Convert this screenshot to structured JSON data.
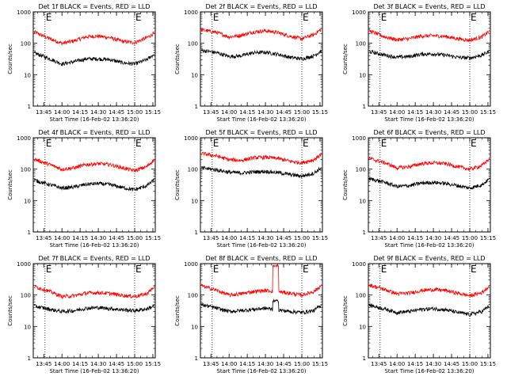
{
  "chart_data": [
    {
      "type": "line",
      "title": "Det 1f BLACK = Events, RED = LLD",
      "ylabel": "Counts/sec",
      "xlabel": "Start Time (16-Feb-02 13:36:20)",
      "x_ticks": [
        "13:45",
        "14:00",
        "14:15",
        "14:30",
        "14:45",
        "15:00",
        "15:15"
      ],
      "y_scale": "log",
      "ylim": [
        1,
        1000
      ],
      "y_ticks": [
        "1",
        "10",
        "100",
        "1000"
      ],
      "xlim": [
        "13:36:20",
        "15:17:00"
      ],
      "vlines": [
        "13:46",
        "15:00"
      ],
      "vline_labels": [
        "E",
        "E"
      ],
      "grid": false,
      "x": [
        "13:37",
        "13:50",
        "14:00",
        "14:10",
        "14:20",
        "14:30",
        "14:40",
        "14:50",
        "15:00",
        "15:10",
        "15:16"
      ],
      "series": [
        {
          "color": "#ff0000",
          "values": [
            230,
            140,
            100,
            120,
            160,
            170,
            150,
            115,
            105,
            150,
            210
          ]
        },
        {
          "color": "#000000",
          "values": [
            50,
            32,
            22,
            26,
            32,
            32,
            30,
            24,
            22,
            30,
            45
          ]
        }
      ]
    },
    {
      "type": "line",
      "title": "Det 2f BLACK = Events, RED = LLD",
      "ylabel": "Counts/sec",
      "xlabel": "Start Time (16-Feb-02 13:36:20)",
      "x_ticks": [
        "13:45",
        "14:00",
        "14:15",
        "14:30",
        "14:45",
        "15:00",
        "15:15"
      ],
      "y_scale": "log",
      "ylim": [
        1,
        1000
      ],
      "y_ticks": [
        "1",
        "10",
        "100",
        "1000"
      ],
      "xlim": [
        "13:36:20",
        "15:17:00"
      ],
      "vlines": [
        "13:46",
        "15:00"
      ],
      "vline_labels": [
        "E",
        "E"
      ],
      "grid": false,
      "x": [
        "13:37",
        "13:50",
        "14:00",
        "14:10",
        "14:20",
        "14:30",
        "14:40",
        "14:50",
        "15:00",
        "15:10",
        "15:16"
      ],
      "series": [
        {
          "color": "#ff0000",
          "values": [
            270,
            220,
            160,
            180,
            230,
            250,
            220,
            170,
            140,
            190,
            280
          ]
        },
        {
          "color": "#000000",
          "values": [
            60,
            50,
            38,
            40,
            50,
            52,
            45,
            36,
            32,
            40,
            58
          ]
        }
      ]
    },
    {
      "type": "line",
      "title": "Det 3f BLACK = Events, RED = LLD",
      "ylabel": "Counts/sec",
      "xlabel": "Start Time (16-Feb-02 13:36:20)",
      "x_ticks": [
        "13:45",
        "14:00",
        "14:15",
        "14:30",
        "14:45",
        "15:00",
        "15:15"
      ],
      "y_scale": "log",
      "ylim": [
        1,
        1000
      ],
      "y_ticks": [
        "1",
        "10",
        "100",
        "1000"
      ],
      "xlim": [
        "13:36:20",
        "15:17:00"
      ],
      "vlines": [
        "13:46",
        "15:00"
      ],
      "vline_labels": [
        "E",
        "E"
      ],
      "grid": false,
      "x": [
        "13:37",
        "13:50",
        "14:00",
        "14:10",
        "14:20",
        "14:30",
        "14:40",
        "14:50",
        "15:00",
        "15:10",
        "15:16"
      ],
      "series": [
        {
          "color": "#ff0000",
          "values": [
            250,
            160,
            130,
            140,
            170,
            175,
            165,
            140,
            125,
            160,
            240
          ]
        },
        {
          "color": "#000000",
          "values": [
            55,
            42,
            36,
            38,
            45,
            46,
            42,
            36,
            34,
            42,
            55
          ]
        }
      ]
    },
    {
      "type": "line",
      "title": "Det 4f BLACK = Events, RED = LLD",
      "ylabel": "Counts/sec",
      "xlabel": "Start Time (16-Feb-02 13:36:20)",
      "x_ticks": [
        "13:45",
        "14:00",
        "14:15",
        "14:30",
        "14:45",
        "15:00",
        "15:15"
      ],
      "y_scale": "log",
      "ylim": [
        1,
        1000
      ],
      "y_ticks": [
        "1",
        "10",
        "100",
        "1000"
      ],
      "xlim": [
        "13:36:20",
        "15:17:00"
      ],
      "vlines": [
        "13:46",
        "15:00"
      ],
      "vline_labels": [
        "E",
        "E"
      ],
      "grid": false,
      "x": [
        "13:37",
        "13:50",
        "14:00",
        "14:10",
        "14:20",
        "14:30",
        "14:40",
        "14:50",
        "15:00",
        "15:10",
        "15:16"
      ],
      "series": [
        {
          "color": "#ff0000",
          "values": [
            210,
            140,
            100,
            110,
            140,
            150,
            140,
            110,
            90,
            120,
            200
          ]
        },
        {
          "color": "#000000",
          "values": [
            45,
            32,
            25,
            27,
            33,
            35,
            32,
            26,
            22,
            30,
            45
          ]
        }
      ]
    },
    {
      "type": "line",
      "title": "Det 5f BLACK = Events, RED = LLD",
      "ylabel": "Counts/sec",
      "xlabel": "Start Time (16-Feb-02 13:36:20)",
      "x_ticks": [
        "13:45",
        "14:00",
        "14:15",
        "14:30",
        "14:45",
        "15:00",
        "15:15"
      ],
      "y_scale": "log",
      "ylim": [
        1,
        1000
      ],
      "y_ticks": [
        "1",
        "10",
        "100",
        "1000"
      ],
      "xlim": [
        "13:36:20",
        "15:17:00"
      ],
      "vlines": [
        "13:46",
        "15:00"
      ],
      "vline_labels": [
        "E",
        "E"
      ],
      "grid": false,
      "x": [
        "13:37",
        "13:50",
        "14:00",
        "14:10",
        "14:20",
        "14:30",
        "14:40",
        "14:50",
        "15:00",
        "15:10",
        "15:16"
      ],
      "series": [
        {
          "color": "#ff0000",
          "values": [
            320,
            260,
            200,
            190,
            230,
            240,
            220,
            180,
            160,
            200,
            300
          ]
        },
        {
          "color": "#000000",
          "values": [
            110,
            95,
            80,
            75,
            82,
            85,
            78,
            68,
            60,
            75,
            110
          ]
        }
      ]
    },
    {
      "type": "line",
      "title": "Det 6f BLACK = Events, RED = LLD",
      "ylabel": "Counts/sec",
      "xlabel": "Start Time (16-Feb-02 13:36:20)",
      "x_ticks": [
        "13:45",
        "14:00",
        "14:15",
        "14:30",
        "14:45",
        "15:00",
        "15:15"
      ],
      "y_scale": "log",
      "ylim": [
        1,
        1000
      ],
      "y_ticks": [
        "1",
        "10",
        "100",
        "1000"
      ],
      "xlim": [
        "13:36:20",
        "15:17:00"
      ],
      "vlines": [
        "13:46",
        "15:00"
      ],
      "vline_labels": [
        "E",
        "E"
      ],
      "grid": false,
      "x": [
        "13:37",
        "13:50",
        "14:00",
        "14:10",
        "14:20",
        "14:30",
        "14:40",
        "14:50",
        "15:00",
        "15:10",
        "15:16"
      ],
      "series": [
        {
          "color": "#ff0000",
          "values": [
            220,
            160,
            110,
            120,
            150,
            160,
            150,
            120,
            100,
            130,
            210
          ]
        },
        {
          "color": "#000000",
          "values": [
            50,
            38,
            28,
            30,
            36,
            38,
            35,
            30,
            25,
            32,
            48
          ]
        }
      ]
    },
    {
      "type": "line",
      "title": "Det 7f BLACK = Events, RED = LLD",
      "ylabel": "Counts/sec",
      "xlabel": "Start Time (16-Feb-02 13:36:20)",
      "x_ticks": [
        "13:45",
        "14:00",
        "14:15",
        "14:30",
        "14:45",
        "15:00",
        "15:15"
      ],
      "y_scale": "log",
      "ylim": [
        1,
        1000
      ],
      "y_ticks": [
        "1",
        "10",
        "100",
        "1000"
      ],
      "xlim": [
        "13:36:20",
        "15:17:00"
      ],
      "vlines": [
        "13:46",
        "15:00"
      ],
      "vline_labels": [
        "E",
        "E"
      ],
      "grid": false,
      "x": [
        "13:37",
        "13:50",
        "14:00",
        "14:10",
        "14:20",
        "14:30",
        "14:40",
        "14:50",
        "15:00",
        "15:10",
        "15:16"
      ],
      "series": [
        {
          "color": "#ff0000",
          "values": [
            190,
            130,
            90,
            95,
            115,
            120,
            112,
            98,
            90,
            110,
            180
          ]
        },
        {
          "color": "#000000",
          "values": [
            45,
            35,
            30,
            32,
            38,
            40,
            37,
            34,
            32,
            36,
            45
          ]
        }
      ]
    },
    {
      "type": "line",
      "title": "Det 8f BLACK = Events, RED = LLD",
      "ylabel": "Counts/sec",
      "xlabel": "Start Time (16-Feb-02 13:36:20)",
      "x_ticks": [
        "13:45",
        "14:00",
        "14:15",
        "14:30",
        "14:45",
        "15:00",
        "15:15"
      ],
      "y_scale": "log",
      "ylim": [
        1,
        1000
      ],
      "y_ticks": [
        "1",
        "10",
        "100",
        "1000"
      ],
      "xlim": [
        "13:36:20",
        "15:17:00"
      ],
      "vlines": [
        "13:46",
        "15:00"
      ],
      "vline_labels": [
        "E",
        "E"
      ],
      "grid": false,
      "x": [
        "13:37",
        "13:50",
        "14:00",
        "14:10",
        "14:20",
        "14:30",
        "14:40",
        "14:50",
        "15:00",
        "15:10",
        "15:16"
      ],
      "series": [
        {
          "color": "#ff0000",
          "values": [
            200,
            140,
            100,
            110,
            130,
            140,
            130,
            115,
            100,
            130,
            200
          ]
        },
        {
          "color": "#000000",
          "values": [
            50,
            38,
            30,
            32,
            35,
            38,
            34,
            30,
            28,
            32,
            48
          ]
        }
      ],
      "spike": {
        "x_from": "14:36",
        "x_to": "14:41",
        "lld_value": 850,
        "events_value": 65
      }
    },
    {
      "type": "line",
      "title": "Det 9f BLACK = Events, RED = LLD",
      "ylabel": "Counts/sec",
      "xlabel": "Start Time (16-Feb-02 13:36:20)",
      "x_ticks": [
        "13:45",
        "14:00",
        "14:15",
        "14:30",
        "14:45",
        "15:00",
        "15:15"
      ],
      "y_scale": "log",
      "ylim": [
        1,
        1000
      ],
      "y_ticks": [
        "1",
        "10",
        "100",
        "1000"
      ],
      "xlim": [
        "13:36:20",
        "15:17:00"
      ],
      "vlines": [
        "13:46",
        "15:00"
      ],
      "vline_labels": [
        "E",
        "E"
      ],
      "grid": false,
      "x": [
        "13:37",
        "13:50",
        "14:00",
        "14:10",
        "14:20",
        "14:30",
        "14:40",
        "14:50",
        "15:00",
        "15:10",
        "15:16"
      ],
      "series": [
        {
          "color": "#ff0000",
          "values": [
            210,
            150,
            110,
            115,
            140,
            150,
            140,
            115,
            95,
            120,
            190
          ]
        },
        {
          "color": "#000000",
          "values": [
            48,
            36,
            28,
            30,
            35,
            37,
            34,
            28,
            24,
            30,
            45
          ]
        }
      ]
    }
  ]
}
